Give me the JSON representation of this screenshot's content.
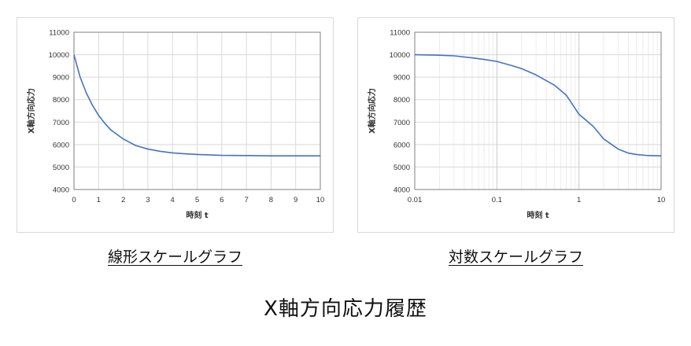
{
  "title": "X軸方向応力履歴",
  "colors": {
    "line": "#4472c4",
    "grid": "#d9d9d9",
    "minor_grid": "#ececec",
    "axis": "#7f7f7f"
  },
  "chart_data": [
    {
      "type": "line",
      "caption": "線形スケールグラフ",
      "xlabel": "時刻 t",
      "ylabel": "X軸方向応力",
      "xscale": "linear",
      "xlim": [
        0,
        10
      ],
      "ylim": [
        4000,
        11000
      ],
      "xticks": [
        "0",
        "1",
        "2",
        "3",
        "4",
        "5",
        "6",
        "7",
        "8",
        "9",
        "10"
      ],
      "yticks": [
        "4000",
        "5000",
        "6000",
        "7000",
        "8000",
        "9000",
        "10000",
        "11000"
      ],
      "grid": true,
      "series": [
        {
          "x": [
            0,
            0.25,
            0.5,
            0.75,
            1,
            1.25,
            1.5,
            2,
            2.5,
            3,
            3.5,
            4,
            4.5,
            5,
            6,
            7,
            8,
            9,
            10
          ],
          "y": [
            10000,
            9000,
            8300,
            7750,
            7300,
            6950,
            6650,
            6250,
            5960,
            5800,
            5700,
            5630,
            5590,
            5560,
            5520,
            5510,
            5500,
            5500,
            5500
          ]
        }
      ]
    },
    {
      "type": "line",
      "caption": "対数スケールグラフ",
      "xlabel": "時刻 t",
      "ylabel": "X軸方向応力",
      "xscale": "log",
      "xlim": [
        0.01,
        10
      ],
      "ylim": [
        4000,
        11000
      ],
      "xticks": [
        "0.01",
        "0.1",
        "1",
        "10"
      ],
      "yticks": [
        "4000",
        "5000",
        "6000",
        "7000",
        "8000",
        "9000",
        "10000",
        "11000"
      ],
      "grid": true,
      "series": [
        {
          "x": [
            0.01,
            0.02,
            0.03,
            0.05,
            0.07,
            0.1,
            0.15,
            0.2,
            0.3,
            0.5,
            0.7,
            1,
            1.5,
            2,
            3,
            4,
            5,
            7,
            10
          ],
          "y": [
            10000,
            9980,
            9950,
            9860,
            9790,
            9700,
            9520,
            9380,
            9100,
            8650,
            8200,
            7350,
            6800,
            6250,
            5800,
            5620,
            5560,
            5510,
            5500
          ]
        }
      ]
    }
  ]
}
